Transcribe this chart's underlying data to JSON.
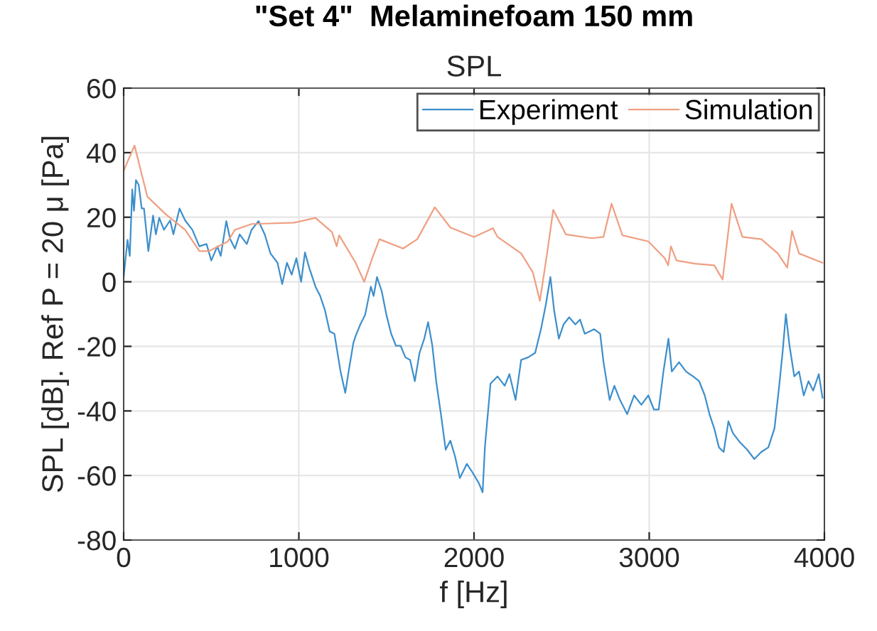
{
  "chart_data": {
    "type": "line",
    "title": "\"Set 4\"  Melaminefoam 150 mm",
    "subtitle": "SPL",
    "xlabel": "f [Hz]",
    "ylabel": "SPL [dB]. Ref P = 20 μ [Pa]",
    "xlim": [
      0,
      4000
    ],
    "xticks": [
      0,
      1000,
      2000,
      3000,
      4000
    ],
    "ylim": [
      -80,
      60
    ],
    "yticks": [
      -80,
      -60,
      -40,
      -20,
      0,
      20,
      40,
      60
    ],
    "grid": true,
    "legend": "top right",
    "series": [
      {
        "name": "Experiment",
        "color": "#3d8fcc",
        "x": [
          0,
          22,
          35,
          49,
          59,
          70,
          86,
          103,
          116,
          141,
          168,
          184,
          203,
          230,
          265,
          284,
          319,
          351,
          392,
          432,
          473,
          500,
          535,
          554,
          586,
          608,
          635,
          662,
          703,
          730,
          770,
          805,
          838,
          878,
          905,
          932,
          959,
          986,
          1013,
          1035,
          1059,
          1095,
          1122,
          1149,
          1176,
          1203,
          1238,
          1265,
          1284,
          1311,
          1324,
          1351,
          1378,
          1411,
          1427,
          1446,
          1473,
          1500,
          1527,
          1554,
          1581,
          1608,
          1635,
          1662,
          1689,
          1716,
          1738,
          1762,
          1784,
          1811,
          1838,
          1865,
          1892,
          1919,
          1959,
          1986,
          2027,
          2049,
          2062,
          2081,
          2094,
          2134,
          2175,
          2202,
          2237,
          2269,
          2309,
          2349,
          2382,
          2409,
          2436,
          2457,
          2484,
          2511,
          2543,
          2578,
          2605,
          2632,
          2686,
          2720,
          2739,
          2774,
          2801,
          2833,
          2874,
          2914,
          2955,
          2995,
          3027,
          3054,
          3081,
          3110,
          3129,
          3170,
          3210,
          3250,
          3285,
          3317,
          3344,
          3371,
          3398,
          3425,
          3452,
          3478,
          3519,
          3559,
          3600,
          3640,
          3680,
          3715,
          3742,
          3761,
          3780,
          3801,
          3828,
          3855,
          3882,
          3909,
          3936,
          3968,
          3989
        ],
        "values": [
          1.5,
          13,
          8,
          28.6,
          22,
          31.5,
          30,
          22.7,
          22.7,
          9.5,
          20.5,
          14.7,
          19.8,
          16.1,
          19,
          14.7,
          22.7,
          19,
          16.1,
          11,
          11.7,
          6.6,
          11,
          8,
          18.8,
          13.2,
          10.3,
          14.7,
          11.7,
          16.1,
          18.8,
          14.7,
          8.8,
          5.9,
          -0.7,
          5.9,
          2.2,
          7.3,
          0,
          9.1,
          4.4,
          -1.5,
          -4.4,
          -8.8,
          -15.4,
          -16.1,
          -27.8,
          -34.4,
          -27.8,
          -19,
          -16.8,
          -13.2,
          -10.3,
          -1.5,
          -4.4,
          1.5,
          -2.9,
          -10.3,
          -16.1,
          -19.8,
          -19.8,
          -23.4,
          -24.2,
          -30.8,
          -22,
          -17.6,
          -12.5,
          -19.8,
          -30.8,
          -41,
          -52,
          -49.2,
          -54.2,
          -60.8,
          -56.4,
          -58.6,
          -62.3,
          -65.2,
          -51.3,
          -39.6,
          -31.5,
          -29.3,
          -32.2,
          -28.6,
          -36.6,
          -24.2,
          -23.4,
          -22,
          -14.7,
          -7.3,
          1.5,
          -8.8,
          -17.6,
          -13.2,
          -11,
          -13.2,
          -11.7,
          -16.1,
          -14.7,
          -16.1,
          -24.9,
          -36.6,
          -32.2,
          -36.6,
          -41,
          -35.2,
          -38.1,
          -35.2,
          -39.6,
          -39.6,
          -27.8,
          -17.6,
          -27.8,
          -24.9,
          -27.8,
          -29.3,
          -30.8,
          -35.2,
          -41,
          -45.4,
          -51.3,
          -52.7,
          -43.2,
          -46.9,
          -49.8,
          -52,
          -54.9,
          -52.7,
          -51.3,
          -45.4,
          -32.2,
          -22,
          -10,
          -19.8,
          -29.3,
          -27.8,
          -35.2,
          -30.8,
          -33.7,
          -28.6,
          -35.9
        ]
      },
      {
        "name": "Simulation",
        "color": "#ef9f82",
        "x": [
          0,
          62,
          135,
          243,
          351,
          432,
          486,
          595,
          635,
          730,
          973,
          1095,
          1189,
          1216,
          1230,
          1324,
          1373,
          1419,
          1460,
          1595,
          1676,
          1776,
          1865,
          2000,
          2108,
          2134,
          2269,
          2336,
          2376,
          2417,
          2452,
          2524,
          2672,
          2739,
          2785,
          2847,
          2995,
          3089,
          3108,
          3124,
          3156,
          3263,
          3371,
          3419,
          3470,
          3532,
          3640,
          3734,
          3788,
          3815,
          3855,
          3989
        ],
        "values": [
          34.4,
          42.2,
          26.4,
          20.8,
          16.1,
          9.5,
          9.5,
          12.5,
          16.1,
          17.9,
          18.3,
          19.8,
          15.4,
          11,
          14.4,
          5.9,
          0,
          7.3,
          13.2,
          10.3,
          13.2,
          23.1,
          16.8,
          13.9,
          16.6,
          13.9,
          8.8,
          2.9,
          -5.9,
          8.8,
          22.3,
          14.7,
          13.5,
          13.9,
          24.2,
          14.4,
          12.5,
          7.3,
          5.1,
          11,
          6.6,
          5.6,
          5.1,
          0.7,
          24.2,
          13.9,
          13.2,
          8.8,
          4.4,
          15.8,
          8.8,
          5.9
        ]
      }
    ]
  }
}
